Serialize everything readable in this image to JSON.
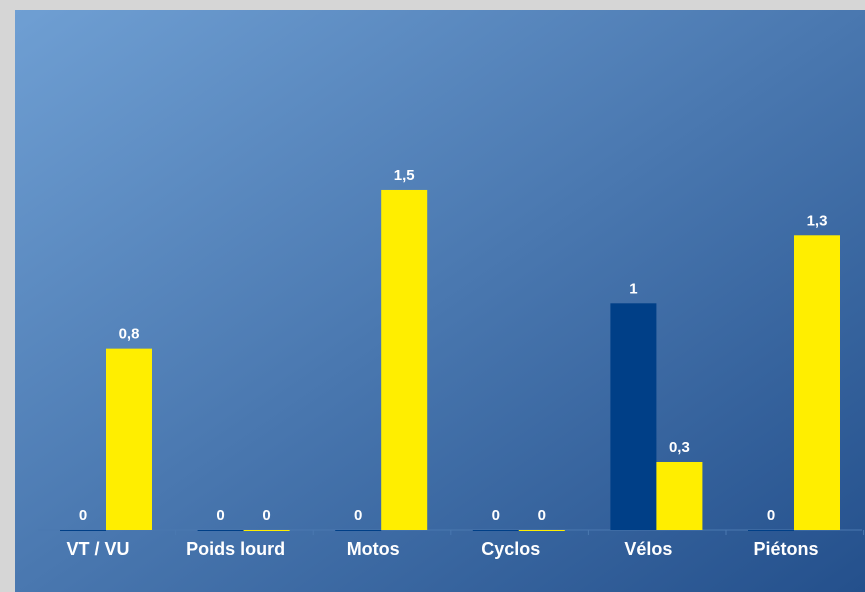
{
  "chart_data": {
    "type": "bar",
    "categories": [
      "VT / VU",
      "Poids lourd",
      "Motos",
      "Cyclos",
      "Vélos",
      "Piétons"
    ],
    "series": [
      {
        "color": "#003f87",
        "values": [
          0,
          0,
          0,
          0,
          1,
          0
        ]
      },
      {
        "color": "#ffee00",
        "values": [
          0.8,
          0,
          1.5,
          0,
          0.3,
          1.3
        ],
        "value_labels": [
          "0,8",
          "0",
          "1,5",
          "0",
          "0,3",
          "1,3"
        ]
      }
    ]
  }
}
